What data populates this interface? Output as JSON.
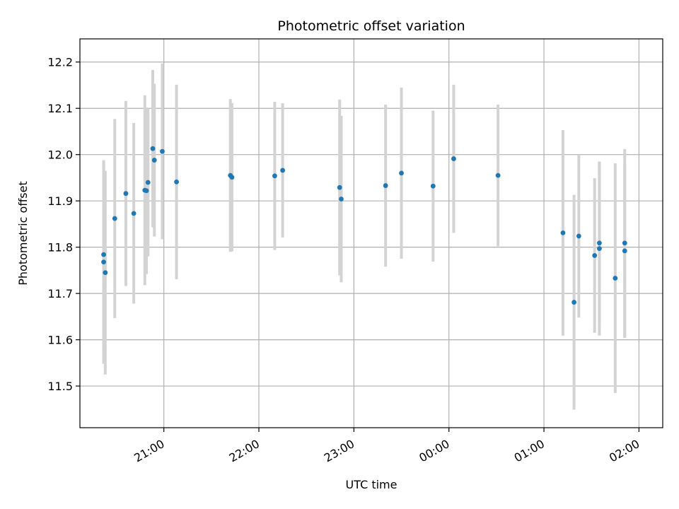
{
  "chart_data": {
    "type": "scatter",
    "title": "Photometric offset variation",
    "xlabel": "UTC time",
    "ylabel": "Photometric offset",
    "x_ticks": [
      "21:00",
      "22:00",
      "23:00",
      "00:00",
      "01:00",
      "02:00"
    ],
    "y_ticks": [
      "11.5",
      "11.6",
      "11.7",
      "11.8",
      "11.9",
      "12.0",
      "12.1",
      "12.2"
    ],
    "xlim": [
      "20:07",
      "02:15"
    ],
    "ylim": [
      11.41,
      12.25
    ],
    "grid": true,
    "colors": {
      "points": "#1f77b4",
      "errorbars": "#d3d3d3",
      "grid": "#b0b0b0"
    },
    "series": [
      {
        "points": [
          {
            "t": "20:22",
            "y": 11.768,
            "err": 0.22
          },
          {
            "t": "20:22",
            "y": 11.784,
            "err": 0.2
          },
          {
            "t": "20:23",
            "y": 11.745,
            "err": 0.22
          },
          {
            "t": "20:29",
            "y": 11.862,
            "err": 0.215
          },
          {
            "t": "20:36",
            "y": 11.916,
            "err": 0.2
          },
          {
            "t": "20:41",
            "y": 11.873,
            "err": 0.195
          },
          {
            "t": "20:48",
            "y": 11.923,
            "err": 0.205
          },
          {
            "t": "20:49",
            "y": 11.922,
            "err": 0.18
          },
          {
            "t": "20:50",
            "y": 11.94,
            "err": 0.16
          },
          {
            "t": "20:53",
            "y": 12.013,
            "err": 0.17
          },
          {
            "t": "20:54",
            "y": 11.988,
            "err": 0.165
          },
          {
            "t": "20:59",
            "y": 12.007,
            "err": 0.19
          },
          {
            "t": "21:08",
            "y": 11.941,
            "err": 0.21
          },
          {
            "t": "21:42",
            "y": 11.955,
            "err": 0.165
          },
          {
            "t": "21:43",
            "y": 11.951,
            "err": 0.16
          },
          {
            "t": "22:10",
            "y": 11.954,
            "err": 0.16
          },
          {
            "t": "22:15",
            "y": 11.966,
            "err": 0.145
          },
          {
            "t": "22:51",
            "y": 11.929,
            "err": 0.19
          },
          {
            "t": "22:52",
            "y": 11.904,
            "err": 0.18
          },
          {
            "t": "23:20",
            "y": 11.933,
            "err": 0.175
          },
          {
            "t": "23:30",
            "y": 11.96,
            "err": 0.185
          },
          {
            "t": "23:50",
            "y": 11.932,
            "err": 0.163
          },
          {
            "t": "00:03",
            "y": 11.991,
            "err": 0.16
          },
          {
            "t": "00:31",
            "y": 11.955,
            "err": 0.153
          },
          {
            "t": "01:12",
            "y": 11.831,
            "err": 0.222
          },
          {
            "t": "01:19",
            "y": 11.681,
            "err": 0.232
          },
          {
            "t": "01:22",
            "y": 11.824,
            "err": 0.176
          },
          {
            "t": "01:32",
            "y": 11.782,
            "err": 0.167
          },
          {
            "t": "01:35",
            "y": 11.797,
            "err": 0.188
          },
          {
            "t": "01:35",
            "y": 11.809,
            "err": 0.175
          },
          {
            "t": "01:45",
            "y": 11.733,
            "err": 0.248
          },
          {
            "t": "01:51",
            "y": 11.792,
            "err": 0.188
          },
          {
            "t": "01:51",
            "y": 11.809,
            "err": 0.203
          }
        ]
      }
    ]
  }
}
